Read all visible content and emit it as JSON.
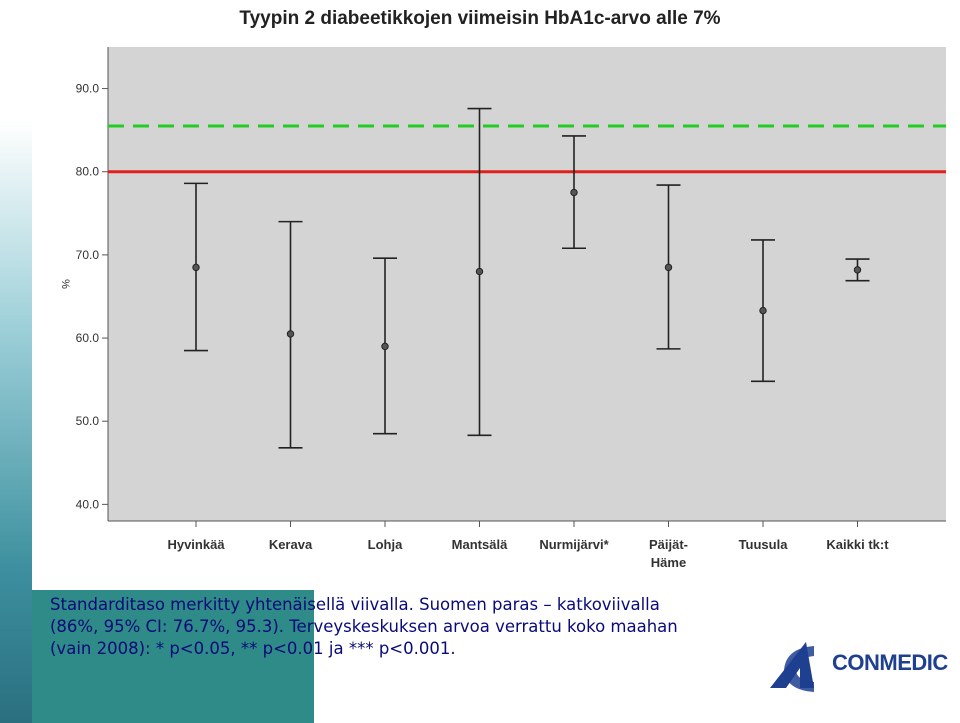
{
  "chart_data": {
    "type": "errorbar",
    "title": "Tyypin 2 diabeetikkojen viimeisin HbA1c-arvo alle 7%",
    "ylabel": "%",
    "xlabel": "",
    "ylim": [
      38,
      95
    ],
    "yticks": [
      40,
      50,
      60,
      70,
      80,
      90
    ],
    "categories": [
      "Hyvinkää",
      "Kerava",
      "Lohja",
      "Mantsälä",
      "Nurmijärvi*",
      "Päijät-Häme",
      "Tuusula",
      "Kaikki tk:t"
    ],
    "means": [
      68.5,
      60.5,
      59.0,
      68.0,
      77.5,
      68.5,
      63.3,
      68.2
    ],
    "lower": [
      58.5,
      46.8,
      48.5,
      48.3,
      70.8,
      58.7,
      54.8,
      66.9
    ],
    "upper": [
      78.6,
      74.0,
      69.6,
      87.6,
      84.3,
      78.4,
      71.8,
      69.5
    ],
    "reference_lines": [
      {
        "value": 80,
        "style": "solid",
        "color": "#e0201c"
      },
      {
        "value": 85.5,
        "style": "dashed",
        "color": "#22cc22"
      }
    ],
    "plot_background": "#d4d4d4"
  },
  "footnote": "Standarditaso merkitty yhtenäisellä viivalla. Suomen paras – katkoviivalla (86%, 95% CI: 76.7%, 95.3). Terveyskeskuksen arvoa verrattu koko maahan (vain 2008): * p<0.05, ** p<0.01 ja *** p<0.001.",
  "logo": {
    "text": "CONMEDIC",
    "color": "#1f3f8f"
  }
}
